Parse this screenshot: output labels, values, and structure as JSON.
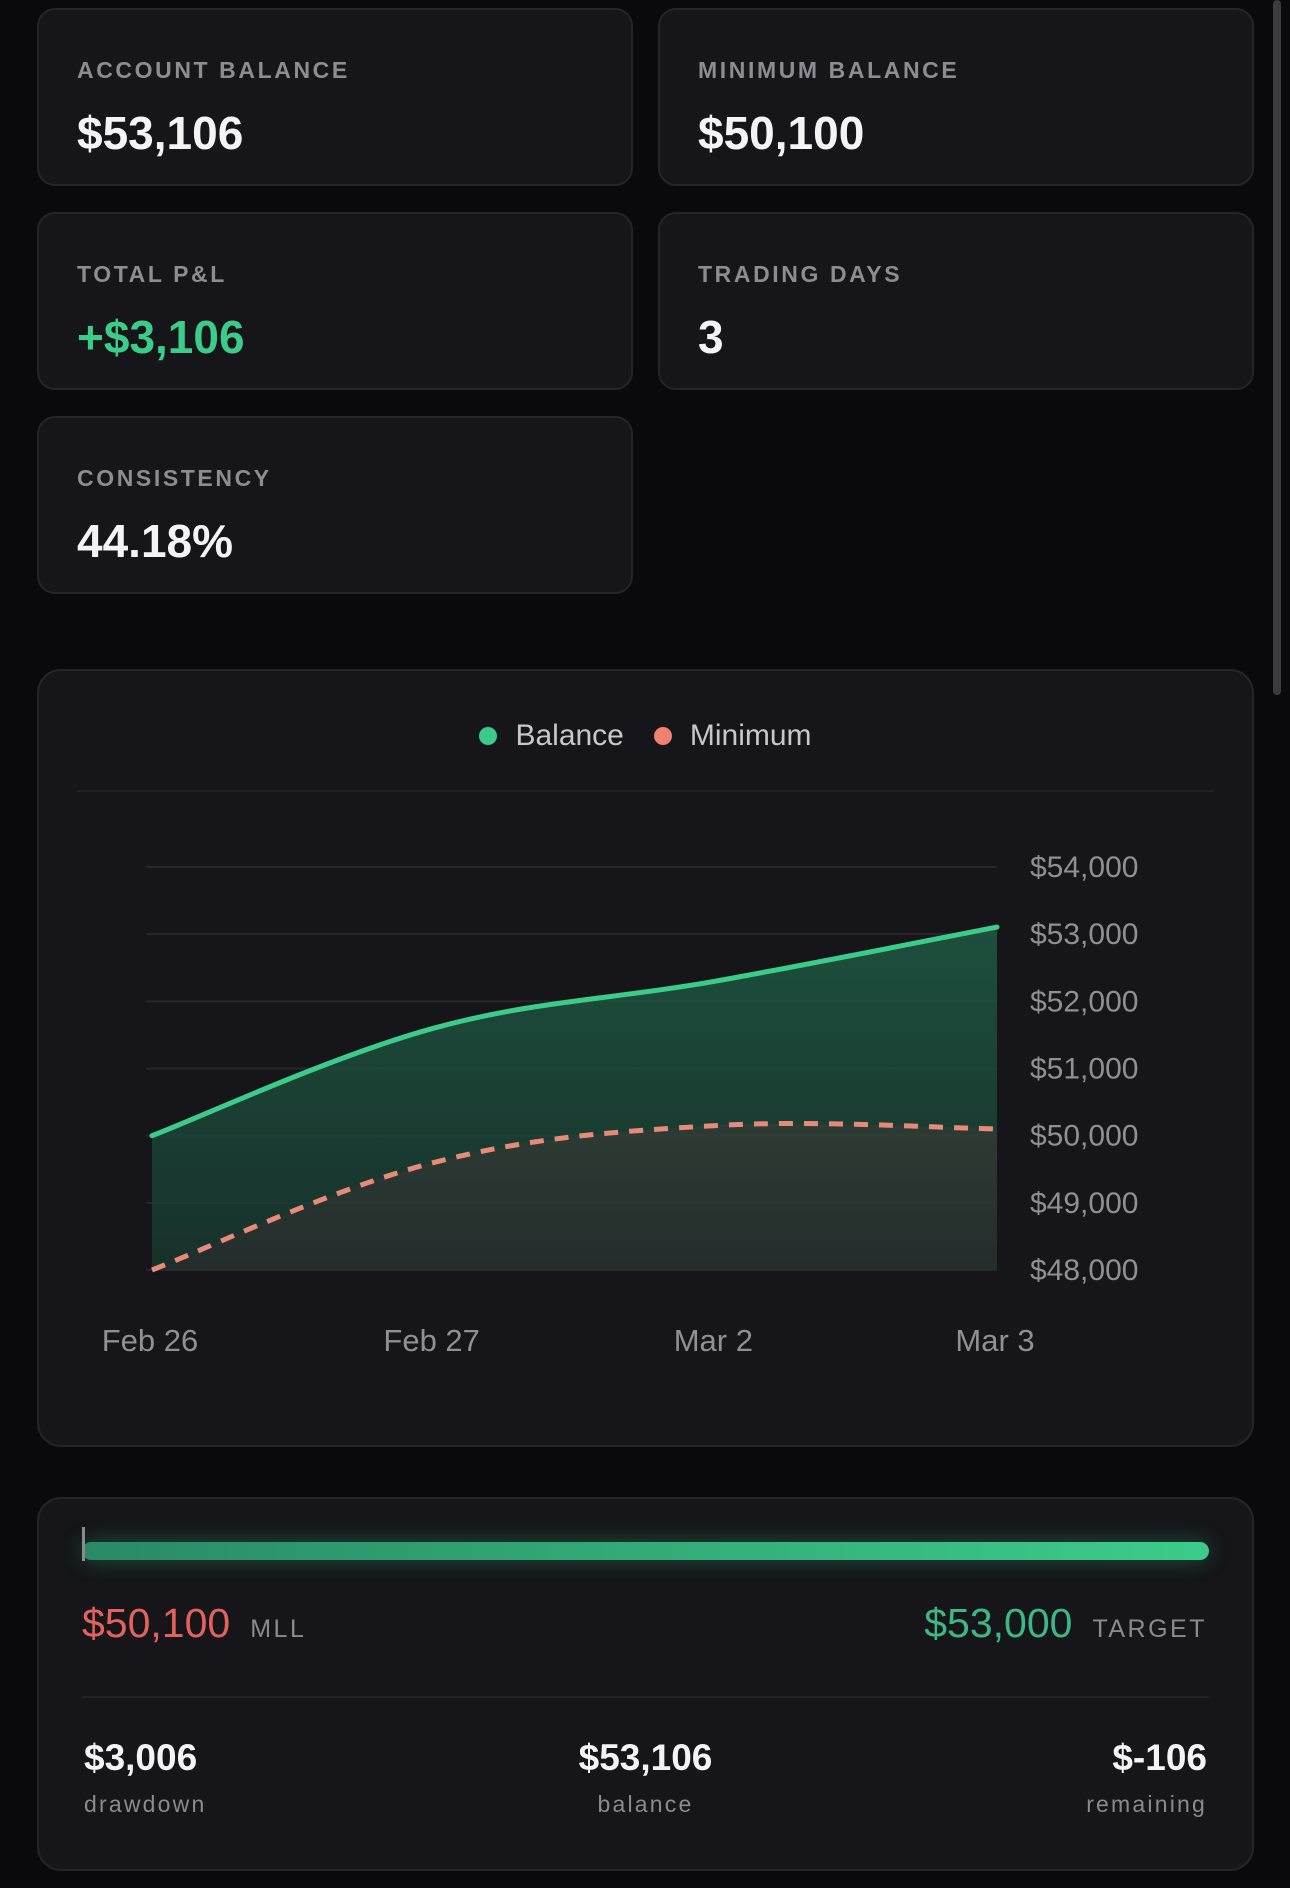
{
  "stats": {
    "account_balance": {
      "label": "ACCOUNT BALANCE",
      "value": "$53,106"
    },
    "minimum_balance": {
      "label": "MINIMUM BALANCE",
      "value": "$50,100"
    },
    "total_pnl": {
      "label": "TOTAL P&L",
      "value": "+$3,106",
      "color": "#3ccc8a"
    },
    "trading_days": {
      "label": "TRADING DAYS",
      "value": "3"
    },
    "consistency": {
      "label": "CONSISTENCY",
      "value": "44.18%"
    }
  },
  "chart_data": {
    "type": "area",
    "categories": [
      "Feb 26",
      "Feb 27",
      "Mar 2",
      "Mar 3"
    ],
    "series": [
      {
        "name": "Balance",
        "values": [
          50000,
          51600,
          52300,
          53106
        ],
        "color": "#3ccc8a",
        "style": "solid"
      },
      {
        "name": "Minimum",
        "values": [
          48000,
          49600,
          50150,
          50100
        ],
        "color": "#e88a78",
        "style": "dashed"
      }
    ],
    "y_ticks": [
      "$54,000",
      "$53,000",
      "$52,000",
      "$51,000",
      "$50,000",
      "$49,000",
      "$48,000"
    ],
    "y_tick_values": [
      54000,
      53000,
      52000,
      51000,
      50000,
      49000,
      48000
    ],
    "ylim": [
      48000,
      54000
    ],
    "y_axis_position": "right",
    "legend_placement": "top-center",
    "grid": true
  },
  "progress": {
    "fill_fraction": 1.0,
    "mll_value": "$50,100",
    "mll_label": "MLL",
    "target_value": "$53,000",
    "target_label": "TARGET",
    "metrics": {
      "drawdown": {
        "value": "$3,006",
        "label": "drawdown"
      },
      "balance": {
        "value": "$53,106",
        "label": "balance"
      },
      "remaining": {
        "value": "$-106",
        "label": "remaining"
      }
    }
  }
}
